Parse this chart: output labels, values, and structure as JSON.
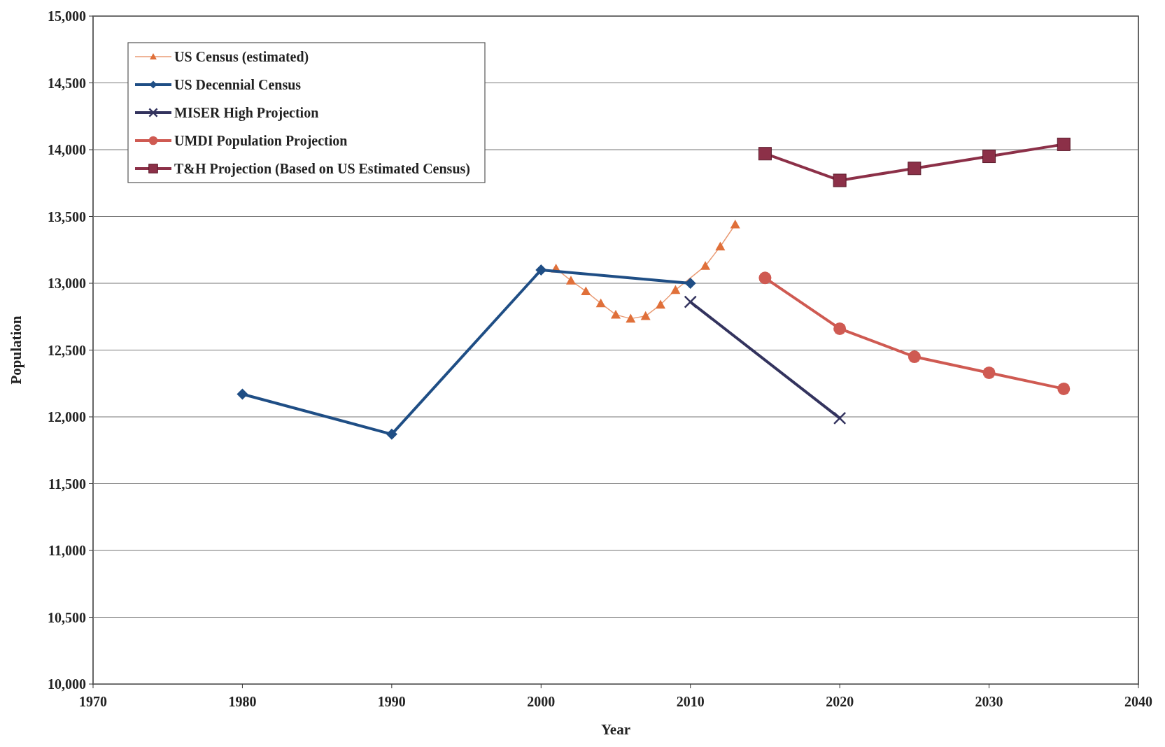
{
  "chart_data": {
    "type": "line",
    "xlabel": "Year",
    "ylabel": "Population",
    "xlim": [
      1970,
      2040
    ],
    "xticks": [
      1970,
      1980,
      1990,
      2000,
      2010,
      2020,
      2030,
      2040
    ],
    "ylim": [
      10000,
      15000
    ],
    "yticks": [
      {
        "value": 10000,
        "label": "10,000"
      },
      {
        "value": 10500,
        "label": "10,500"
      },
      {
        "value": 11000,
        "label": "11,000"
      },
      {
        "value": 11500,
        "label": "11,500"
      },
      {
        "value": 12000,
        "label": "12,000"
      },
      {
        "value": 12500,
        "label": "12,500"
      },
      {
        "value": 13000,
        "label": "13,000"
      },
      {
        "value": 13500,
        "label": "13,500"
      },
      {
        "value": 14000,
        "label": "14,000"
      },
      {
        "value": 14500,
        "label": "14,500"
      },
      {
        "value": 15000,
        "label": "15,000"
      }
    ],
    "grid": "y",
    "legend": "top left",
    "series": [
      {
        "name": "US Census (estimated)",
        "color": "#e0703a",
        "marker": "triangle",
        "x": [
          2001,
          2002,
          2003,
          2004,
          2005,
          2006,
          2007,
          2008,
          2009,
          2010,
          2011,
          2012,
          2013
        ],
        "values": [
          13110,
          13020,
          12940,
          12850,
          12765,
          12735,
          12755,
          12840,
          12950,
          null,
          13130,
          13275,
          13440
        ]
      },
      {
        "name": "US Decennial Census",
        "color": "#1f4e85",
        "marker": "diamond",
        "x": [
          1980,
          1990,
          2000,
          2010
        ],
        "values": [
          12170,
          11870,
          13100,
          13000
        ]
      },
      {
        "name": "MISER High Projection",
        "color": "#33335e",
        "marker": "cross",
        "x": [
          2010,
          2020
        ],
        "values": [
          12860,
          11990
        ]
      },
      {
        "name": "UMDI Population Projection",
        "color": "#cf5a52",
        "marker": "circle",
        "x": [
          2015,
          2020,
          2025,
          2030,
          2035
        ],
        "values": [
          13040,
          12660,
          12450,
          12330,
          12210
        ]
      },
      {
        "name": "T&H Projection (Based on US Estimated Census)",
        "color": "#8c3048",
        "marker": "square",
        "x": [
          2015,
          2020,
          2025,
          2030,
          2035
        ],
        "values": [
          13970,
          13770,
          13860,
          13950,
          14040
        ]
      }
    ]
  }
}
